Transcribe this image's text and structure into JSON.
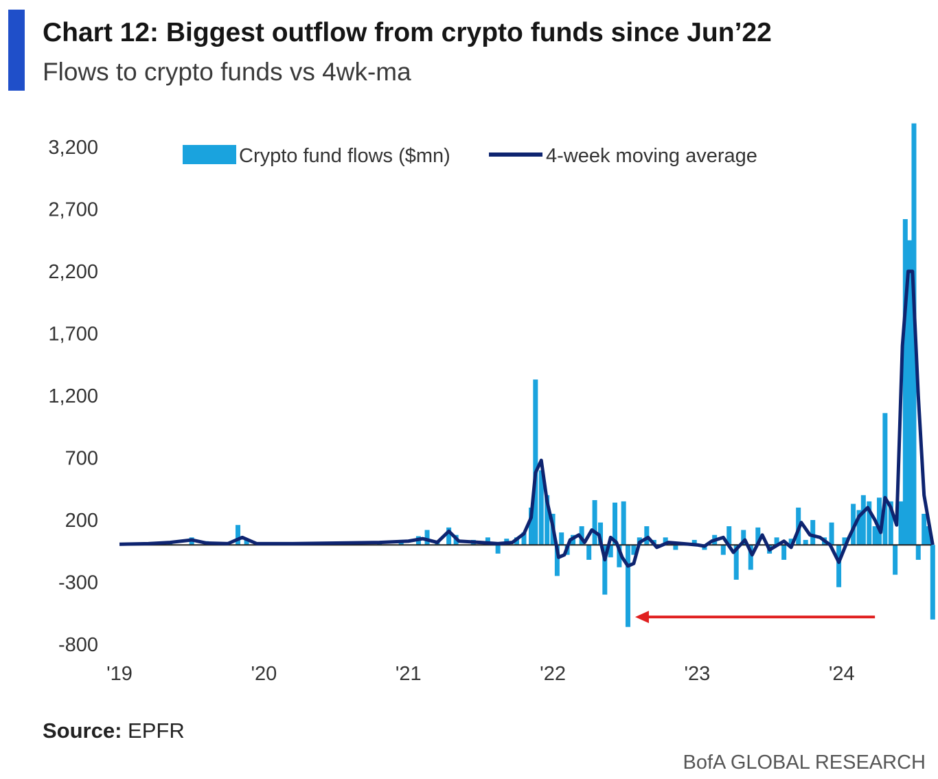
{
  "header": {
    "title": "Chart 12: Biggest outflow from crypto funds since Jun’22",
    "subtitle": "Flows to crypto funds vs 4wk-ma",
    "accent_color": "#1f4fc9"
  },
  "footer": {
    "source_label": "Source:",
    "source_value": "EPFR",
    "brand": "BofA GLOBAL RESEARCH"
  },
  "chart_data": {
    "type": "bar",
    "xlabel": "",
    "ylabel": "",
    "ylim": [
      -800,
      3200
    ],
    "yticks": [
      3200,
      2700,
      2200,
      1700,
      1200,
      700,
      200,
      -300,
      -800
    ],
    "ytick_labels": [
      "3,200",
      "2,700",
      "2,200",
      "1,700",
      "1,200",
      "700",
      "200",
      "-300",
      "-800"
    ],
    "xlim": [
      2019.0,
      2024.6
    ],
    "xticks": [
      2019,
      2020,
      2021,
      2022,
      2023,
      2024
    ],
    "xtick_labels": [
      "'19",
      "'20",
      "'21",
      "'22",
      "'23",
      "'24"
    ],
    "legend_position": "top",
    "colors": {
      "bars": "#1aa3de",
      "line": "#0e2470",
      "zero_line": "#222222",
      "annotation_arrow": "#e02020"
    },
    "annotation": {
      "type": "arrow",
      "from": {
        "x": 2024.23,
        "y": -580
      },
      "to": {
        "x": 2022.57,
        "y": -580
      }
    },
    "series": [
      {
        "name": "Crypto fund flows ($mn)",
        "kind": "bar",
        "points": [
          [
            2019.05,
            5
          ],
          [
            2019.2,
            10
          ],
          [
            2019.35,
            15
          ],
          [
            2019.5,
            60
          ],
          [
            2019.6,
            30
          ],
          [
            2019.75,
            10
          ],
          [
            2019.82,
            160
          ],
          [
            2019.88,
            50
          ],
          [
            2020.0,
            15
          ],
          [
            2020.2,
            10
          ],
          [
            2020.4,
            20
          ],
          [
            2020.6,
            15
          ],
          [
            2020.8,
            30
          ],
          [
            2020.95,
            40
          ],
          [
            2021.07,
            70
          ],
          [
            2021.13,
            120
          ],
          [
            2021.2,
            30
          ],
          [
            2021.28,
            140
          ],
          [
            2021.33,
            80
          ],
          [
            2021.45,
            40
          ],
          [
            2021.55,
            60
          ],
          [
            2021.62,
            -70
          ],
          [
            2021.68,
            50
          ],
          [
            2021.75,
            60
          ],
          [
            2021.8,
            100
          ],
          [
            2021.85,
            300
          ],
          [
            2021.88,
            1330
          ],
          [
            2021.92,
            600
          ],
          [
            2021.96,
            400
          ],
          [
            2022.0,
            250
          ],
          [
            2022.03,
            -250
          ],
          [
            2022.06,
            100
          ],
          [
            2022.1,
            -80
          ],
          [
            2022.14,
            80
          ],
          [
            2022.2,
            150
          ],
          [
            2022.25,
            -120
          ],
          [
            2022.29,
            360
          ],
          [
            2022.33,
            180
          ],
          [
            2022.36,
            -400
          ],
          [
            2022.4,
            -100
          ],
          [
            2022.43,
            340
          ],
          [
            2022.46,
            -180
          ],
          [
            2022.49,
            350
          ],
          [
            2022.52,
            -660
          ],
          [
            2022.56,
            -80
          ],
          [
            2022.6,
            60
          ],
          [
            2022.65,
            150
          ],
          [
            2022.7,
            40
          ],
          [
            2022.78,
            60
          ],
          [
            2022.85,
            -40
          ],
          [
            2022.9,
            20
          ],
          [
            2022.98,
            40
          ],
          [
            2023.05,
            -40
          ],
          [
            2023.12,
            80
          ],
          [
            2023.18,
            -80
          ],
          [
            2023.22,
            150
          ],
          [
            2023.27,
            -280
          ],
          [
            2023.32,
            120
          ],
          [
            2023.37,
            -200
          ],
          [
            2023.42,
            140
          ],
          [
            2023.5,
            -70
          ],
          [
            2023.55,
            60
          ],
          [
            2023.6,
            -120
          ],
          [
            2023.65,
            50
          ],
          [
            2023.7,
            300
          ],
          [
            2023.75,
            40
          ],
          [
            2023.8,
            200
          ],
          [
            2023.88,
            60
          ],
          [
            2023.93,
            180
          ],
          [
            2023.98,
            -340
          ],
          [
            2024.02,
            60
          ],
          [
            2024.08,
            330
          ],
          [
            2024.12,
            280
          ],
          [
            2024.15,
            400
          ],
          [
            2024.19,
            350
          ],
          [
            2024.23,
            150
          ],
          [
            2024.26,
            380
          ],
          [
            2024.3,
            1060
          ],
          [
            2024.34,
            350
          ],
          [
            2024.37,
            -240
          ],
          [
            2024.41,
            350
          ],
          [
            2024.44,
            2620
          ],
          [
            2024.47,
            2450
          ],
          [
            2024.5,
            3390
          ],
          [
            2024.53,
            -120
          ],
          [
            2024.57,
            250
          ],
          [
            2024.6,
            150
          ],
          [
            2024.63,
            -600
          ]
        ]
      },
      {
        "name": "4-week moving average",
        "kind": "line",
        "points": [
          [
            2019.0,
            5
          ],
          [
            2019.2,
            10
          ],
          [
            2019.35,
            20
          ],
          [
            2019.5,
            40
          ],
          [
            2019.6,
            15
          ],
          [
            2019.75,
            10
          ],
          [
            2019.85,
            60
          ],
          [
            2019.95,
            10
          ],
          [
            2020.2,
            10
          ],
          [
            2020.5,
            15
          ],
          [
            2020.8,
            20
          ],
          [
            2021.0,
            30
          ],
          [
            2021.1,
            50
          ],
          [
            2021.2,
            20
          ],
          [
            2021.28,
            110
          ],
          [
            2021.35,
            30
          ],
          [
            2021.5,
            20
          ],
          [
            2021.62,
            10
          ],
          [
            2021.72,
            20
          ],
          [
            2021.8,
            90
          ],
          [
            2021.85,
            220
          ],
          [
            2021.88,
            580
          ],
          [
            2021.92,
            680
          ],
          [
            2021.96,
            350
          ],
          [
            2022.0,
            150
          ],
          [
            2022.04,
            -100
          ],
          [
            2022.08,
            -80
          ],
          [
            2022.12,
            40
          ],
          [
            2022.18,
            80
          ],
          [
            2022.22,
            20
          ],
          [
            2022.27,
            120
          ],
          [
            2022.32,
            80
          ],
          [
            2022.36,
            -120
          ],
          [
            2022.4,
            60
          ],
          [
            2022.44,
            20
          ],
          [
            2022.48,
            -100
          ],
          [
            2022.52,
            -170
          ],
          [
            2022.56,
            -150
          ],
          [
            2022.6,
            20
          ],
          [
            2022.66,
            60
          ],
          [
            2022.72,
            -20
          ],
          [
            2022.8,
            20
          ],
          [
            2022.9,
            10
          ],
          [
            2023.0,
            0
          ],
          [
            2023.05,
            -10
          ],
          [
            2023.1,
            30
          ],
          [
            2023.18,
            60
          ],
          [
            2023.25,
            -60
          ],
          [
            2023.33,
            40
          ],
          [
            2023.38,
            -80
          ],
          [
            2023.45,
            80
          ],
          [
            2023.5,
            -40
          ],
          [
            2023.6,
            30
          ],
          [
            2023.65,
            -20
          ],
          [
            2023.72,
            180
          ],
          [
            2023.78,
            80
          ],
          [
            2023.85,
            60
          ],
          [
            2023.92,
            0
          ],
          [
            2023.98,
            -140
          ],
          [
            2024.05,
            60
          ],
          [
            2024.12,
            230
          ],
          [
            2024.18,
            300
          ],
          [
            2024.23,
            200
          ],
          [
            2024.27,
            100
          ],
          [
            2024.3,
            380
          ],
          [
            2024.34,
            300
          ],
          [
            2024.38,
            160
          ],
          [
            2024.42,
            1600
          ],
          [
            2024.46,
            2200
          ],
          [
            2024.49,
            2200
          ],
          [
            2024.53,
            1200
          ],
          [
            2024.57,
            400
          ],
          [
            2024.6,
            200
          ],
          [
            2024.63,
            0
          ]
        ]
      }
    ]
  }
}
